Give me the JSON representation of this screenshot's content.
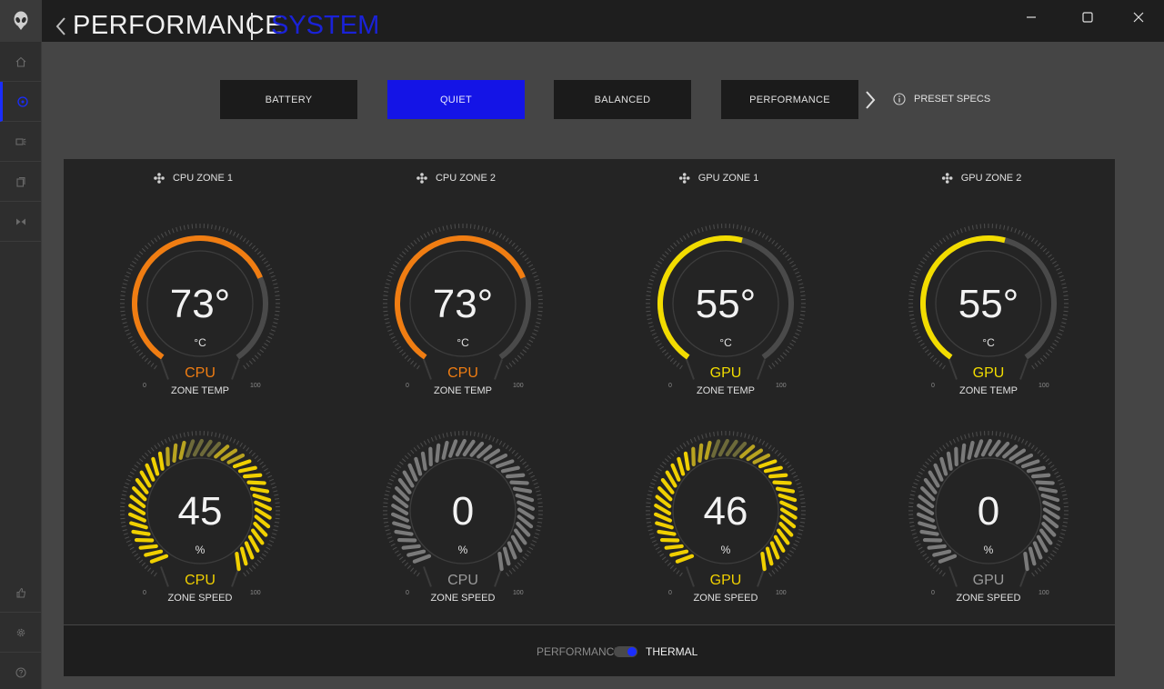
{
  "header": {
    "title": "PERFORMANCE",
    "subtitle": "SYSTEM"
  },
  "presets": {
    "items": [
      {
        "label": "BATTERY",
        "active": false
      },
      {
        "label": "QUIET",
        "active": true
      },
      {
        "label": "BALANCED",
        "active": false
      },
      {
        "label": "PERFORMANCE",
        "active": false
      }
    ],
    "specs_label": "PRESET SPECS"
  },
  "zones": [
    {
      "title": "CPU ZONE 1",
      "temp": {
        "value": "73°",
        "unit": "°C",
        "type": "CPU",
        "label": "ZONE TEMP",
        "min": "0",
        "max": "100",
        "level": 73,
        "color": "#f07d12"
      },
      "speed": {
        "value": "45",
        "unit": "%",
        "type": "CPU",
        "label": "ZONE SPEED",
        "min": "0",
        "max": "100",
        "level": 45,
        "color": "#f0d000",
        "active": true
      }
    },
    {
      "title": "CPU ZONE 2",
      "temp": {
        "value": "73°",
        "unit": "°C",
        "type": "CPU",
        "label": "ZONE TEMP",
        "min": "0",
        "max": "100",
        "level": 73,
        "color": "#f07d12"
      },
      "speed": {
        "value": "0",
        "unit": "%",
        "type": "CPU",
        "label": "ZONE SPEED",
        "min": "0",
        "max": "100",
        "level": 0,
        "color": "#8a8a8a",
        "active": false
      }
    },
    {
      "title": "GPU ZONE 1",
      "temp": {
        "value": "55°",
        "unit": "°C",
        "type": "GPU",
        "label": "ZONE TEMP",
        "min": "0",
        "max": "100",
        "level": 55,
        "color": "#f2dc00"
      },
      "speed": {
        "value": "46",
        "unit": "%",
        "type": "GPU",
        "label": "ZONE SPEED",
        "min": "0",
        "max": "100",
        "level": 46,
        "color": "#f0d000",
        "active": true
      }
    },
    {
      "title": "GPU ZONE 2",
      "temp": {
        "value": "55°",
        "unit": "°C",
        "type": "GPU",
        "label": "ZONE TEMP",
        "min": "0",
        "max": "100",
        "level": 55,
        "color": "#f2dc00"
      },
      "speed": {
        "value": "0",
        "unit": "%",
        "type": "GPU",
        "label": "ZONE SPEED",
        "min": "0",
        "max": "100",
        "level": 0,
        "color": "#8a8a8a",
        "active": false
      }
    }
  ],
  "bottom": {
    "left_label": "PERFORMANCE",
    "right_label": "THERMAL"
  },
  "colors": {
    "accent": "#1414e6",
    "track": "#4a4a4a"
  }
}
